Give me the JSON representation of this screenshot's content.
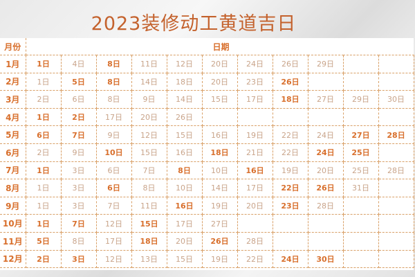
{
  "title": "2023装修动工黄道吉日",
  "header": {
    "month": "月份",
    "dates": "日期"
  },
  "colors": {
    "accent": "#d86f2c",
    "normal": "#c9a48a",
    "border": "#d9a067"
  },
  "rows": [
    {
      "month": "1月",
      "days": [
        [
          "1日",
          1
        ],
        [
          "4日",
          0
        ],
        [
          "8日",
          1
        ],
        [
          "11日",
          0
        ],
        [
          "12日",
          0
        ],
        [
          "20日",
          0
        ],
        [
          "24日",
          0
        ],
        [
          "26日",
          0
        ],
        [
          "29日",
          0
        ]
      ]
    },
    {
      "month": "2月",
      "days": [
        [
          "1日",
          0
        ],
        [
          "5日",
          1
        ],
        [
          "8日",
          1
        ],
        [
          "14日",
          0
        ],
        [
          "18日",
          0
        ],
        [
          "20日",
          0
        ],
        [
          "23日",
          0
        ],
        [
          "26日",
          1
        ]
      ]
    },
    {
      "month": "3月",
      "days": [
        [
          "2日",
          0
        ],
        [
          "6日",
          0
        ],
        [
          "8日",
          0
        ],
        [
          "9日",
          0
        ],
        [
          "14日",
          0
        ],
        [
          "15日",
          0
        ],
        [
          "17日",
          0
        ],
        [
          "18日",
          1
        ],
        [
          "27日",
          0
        ],
        [
          "29日",
          0
        ],
        [
          "30日",
          0
        ]
      ]
    },
    {
      "month": "4月",
      "days": [
        [
          "1日",
          1
        ],
        [
          "2日",
          1
        ],
        [
          "17日",
          0
        ],
        [
          "20日",
          0
        ],
        [
          "26日",
          0
        ]
      ]
    },
    {
      "month": "5月",
      "days": [
        [
          "6日",
          1
        ],
        [
          "7日",
          1
        ],
        [
          "9日",
          0
        ],
        [
          "12日",
          0
        ],
        [
          "15日",
          0
        ],
        [
          "16日",
          0
        ],
        [
          "19日",
          0
        ],
        [
          "22日",
          0
        ],
        [
          "24日",
          0
        ],
        [
          "27日",
          1
        ],
        [
          "28日",
          1
        ]
      ]
    },
    {
      "month": "6月",
      "days": [
        [
          "2日",
          0
        ],
        [
          "9日",
          0
        ],
        [
          "10日",
          1
        ],
        [
          "15日",
          0
        ],
        [
          "16日",
          0
        ],
        [
          "18日",
          1
        ],
        [
          "21日",
          0
        ],
        [
          "22日",
          0
        ],
        [
          "24日",
          1
        ],
        [
          "25日",
          1
        ]
      ]
    },
    {
      "month": "7月",
      "days": [
        [
          "1日",
          1
        ],
        [
          "3日",
          0
        ],
        [
          "6日",
          0
        ],
        [
          "7日",
          0
        ],
        [
          "8日",
          1
        ],
        [
          "10日",
          0
        ],
        [
          "16日",
          1
        ],
        [
          "19日",
          0
        ],
        [
          "20日",
          0
        ],
        [
          "25日",
          0
        ],
        [
          "28日",
          0
        ]
      ]
    },
    {
      "month": "8月",
      "days": [
        [
          "1日",
          0
        ],
        [
          "3日",
          0
        ],
        [
          "6日",
          1
        ],
        [
          "8日",
          0
        ],
        [
          "10日",
          0
        ],
        [
          "14日",
          0
        ],
        [
          "17日",
          0
        ],
        [
          "22日",
          1
        ],
        [
          "26日",
          1
        ],
        [
          "31日",
          0
        ]
      ]
    },
    {
      "month": "9月",
      "days": [
        [
          "1日",
          0
        ],
        [
          "3日",
          0
        ],
        [
          "7日",
          0
        ],
        [
          "11日",
          0
        ],
        [
          "16日",
          1
        ],
        [
          "19日",
          0
        ],
        [
          "20日",
          0
        ],
        [
          "23日",
          1
        ],
        [
          "28日",
          0
        ]
      ]
    },
    {
      "month": "10月",
      "days": [
        [
          "1日",
          1
        ],
        [
          "7日",
          1
        ],
        [
          "12日",
          0
        ],
        [
          "15日",
          1
        ],
        [
          "17日",
          0
        ],
        [
          "27日",
          0
        ]
      ]
    },
    {
      "month": "11月",
      "days": [
        [
          "5日",
          1
        ],
        [
          "8日",
          0
        ],
        [
          "17日",
          0
        ],
        [
          "18日",
          1
        ],
        [
          "20日",
          0
        ],
        [
          "26日",
          1
        ],
        [
          "28日",
          0
        ]
      ]
    },
    {
      "month": "12月",
      "days": [
        [
          "2日",
          1
        ],
        [
          "3日",
          1
        ],
        [
          "12日",
          0
        ],
        [
          "13日",
          0
        ],
        [
          "15日",
          0
        ],
        [
          "19日",
          0
        ],
        [
          "22日",
          0
        ],
        [
          "24日",
          1
        ],
        [
          "30日",
          1
        ]
      ]
    }
  ]
}
